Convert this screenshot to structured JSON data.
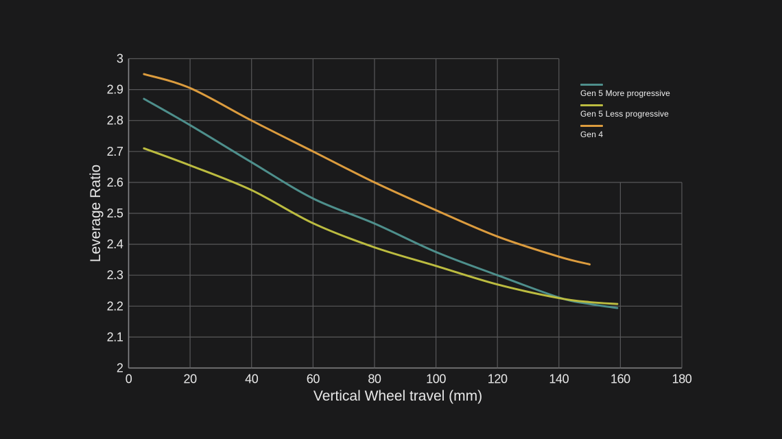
{
  "colors": {
    "background": "#1a1a1b",
    "grid": "#58585a",
    "axis": "#87878a",
    "tick_text": "#e8e8e8",
    "series_teal": "#4E8F8C",
    "series_yellow": "#BCBC40",
    "series_orange": "#DC9C3E"
  },
  "chart_data": {
    "type": "line",
    "title": "",
    "xlabel": "Vertical Wheel travel (mm)",
    "ylabel": "Leverage Ratio",
    "xlim": [
      0,
      180
    ],
    "ylim": [
      2,
      3
    ],
    "xticks": [
      0,
      20,
      40,
      60,
      80,
      100,
      120,
      140,
      160,
      180
    ],
    "xtick_labels": [
      "0",
      "20",
      "40",
      "60",
      "80",
      "100",
      "120",
      "140",
      "160",
      "180"
    ],
    "yticks": [
      2,
      2.1,
      2.2,
      2.3,
      2.4,
      2.5,
      2.6,
      2.7,
      2.8,
      2.9,
      3
    ],
    "ytick_labels": [
      "2",
      "2.1",
      "2.2",
      "2.3",
      "2.4",
      "2.5",
      "2.6",
      "2.7",
      "2.8",
      "2.9",
      "3"
    ],
    "grid": true,
    "grid_break": {
      "x_above": 140,
      "y_below": 2.6
    },
    "legend_position": "right",
    "series": [
      {
        "name": "Gen 5 More progressive",
        "color": "#4E8F8C",
        "x": [
          5,
          20,
          40,
          60,
          80,
          100,
          120,
          140,
          150,
          159
        ],
        "y": [
          2.87,
          2.785,
          2.665,
          2.548,
          2.467,
          2.375,
          2.3,
          2.228,
          2.207,
          2.194
        ]
      },
      {
        "name": "Gen 5 Less progressive",
        "color": "#BCBC40",
        "x": [
          5,
          20,
          40,
          60,
          80,
          100,
          120,
          140,
          150,
          159
        ],
        "y": [
          2.71,
          2.655,
          2.575,
          2.468,
          2.39,
          2.33,
          2.27,
          2.226,
          2.213,
          2.207
        ]
      },
      {
        "name": "Gen 4",
        "color": "#DC9C3E",
        "x": [
          5,
          20,
          40,
          60,
          80,
          100,
          120,
          140,
          150
        ],
        "y": [
          2.95,
          2.905,
          2.8,
          2.7,
          2.6,
          2.51,
          2.425,
          2.36,
          2.335
        ]
      }
    ]
  }
}
